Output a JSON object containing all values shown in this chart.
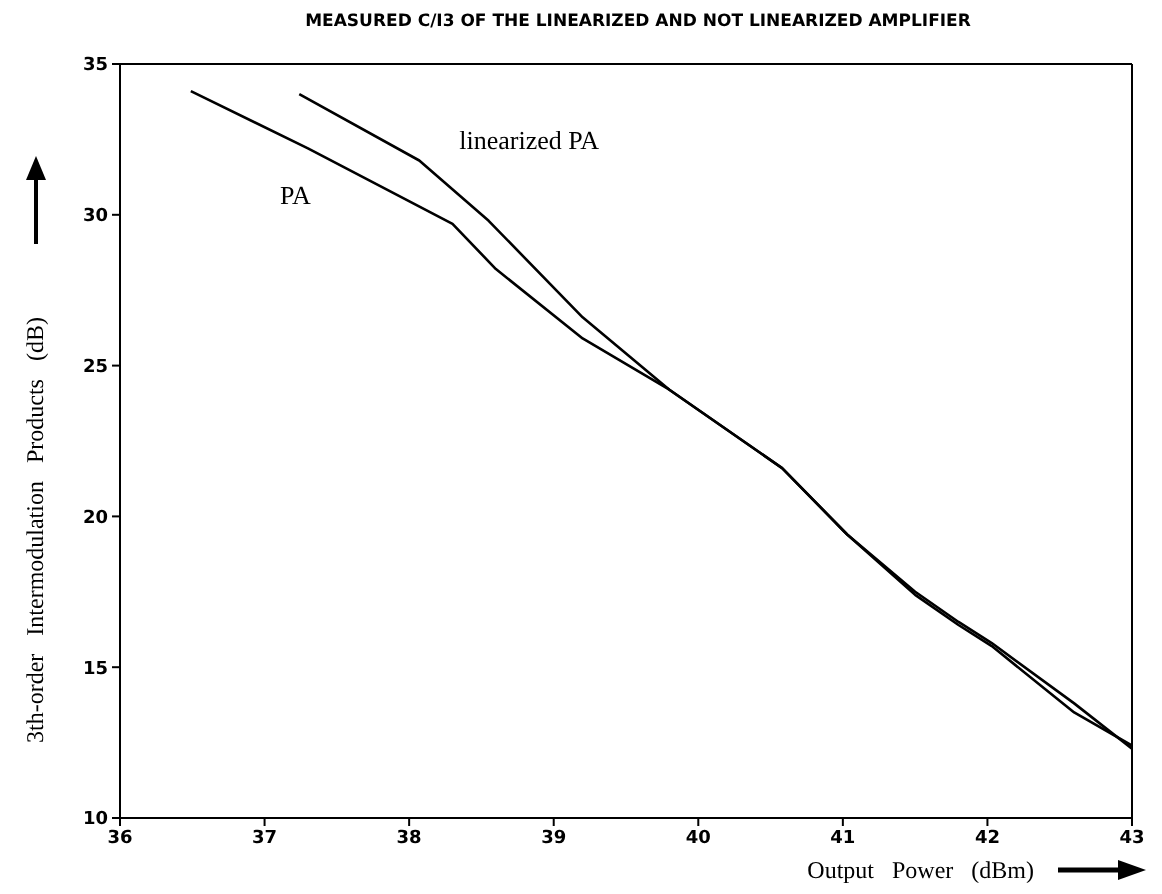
{
  "chart_data": {
    "type": "line",
    "title": "MEASURED C/I3 OF THE LINEARIZED AND NOT LINEARIZED AMPLIFIER",
    "xlabel": "Output Power (dBm)",
    "ylabel": "3th-order Intermodulation Products (dB)",
    "xlim": [
      36,
      43
    ],
    "xticks": [
      36,
      37,
      38,
      39,
      40,
      41,
      42,
      43
    ],
    "ylim": [
      10,
      35
    ],
    "yticks": [
      10,
      15,
      20,
      25,
      30,
      35
    ],
    "marker": "none",
    "line_style": "solid",
    "series": [
      {
        "name": "PA",
        "color": "#000000",
        "x": [
          36.49,
          37.3,
          38.3,
          38.6,
          39.2,
          39.8,
          40.58,
          41.03,
          41.5,
          41.8,
          42.03,
          42.6,
          43.0
        ],
        "values": [
          34.1,
          32.2,
          29.7,
          28.2,
          25.9,
          24.2,
          21.6,
          19.4,
          17.4,
          16.4,
          15.7,
          13.5,
          12.4
        ]
      },
      {
        "name": "linearized PA",
        "color": "#000000",
        "x": [
          37.24,
          38.07,
          38.55,
          39.2,
          39.8,
          40.58,
          41.03,
          41.5,
          41.8,
          42.03,
          42.6,
          43.0
        ],
        "values": [
          34.0,
          31.8,
          29.8,
          26.6,
          24.2,
          21.6,
          19.4,
          17.5,
          16.5,
          15.8,
          13.8,
          12.3
        ]
      }
    ]
  }
}
